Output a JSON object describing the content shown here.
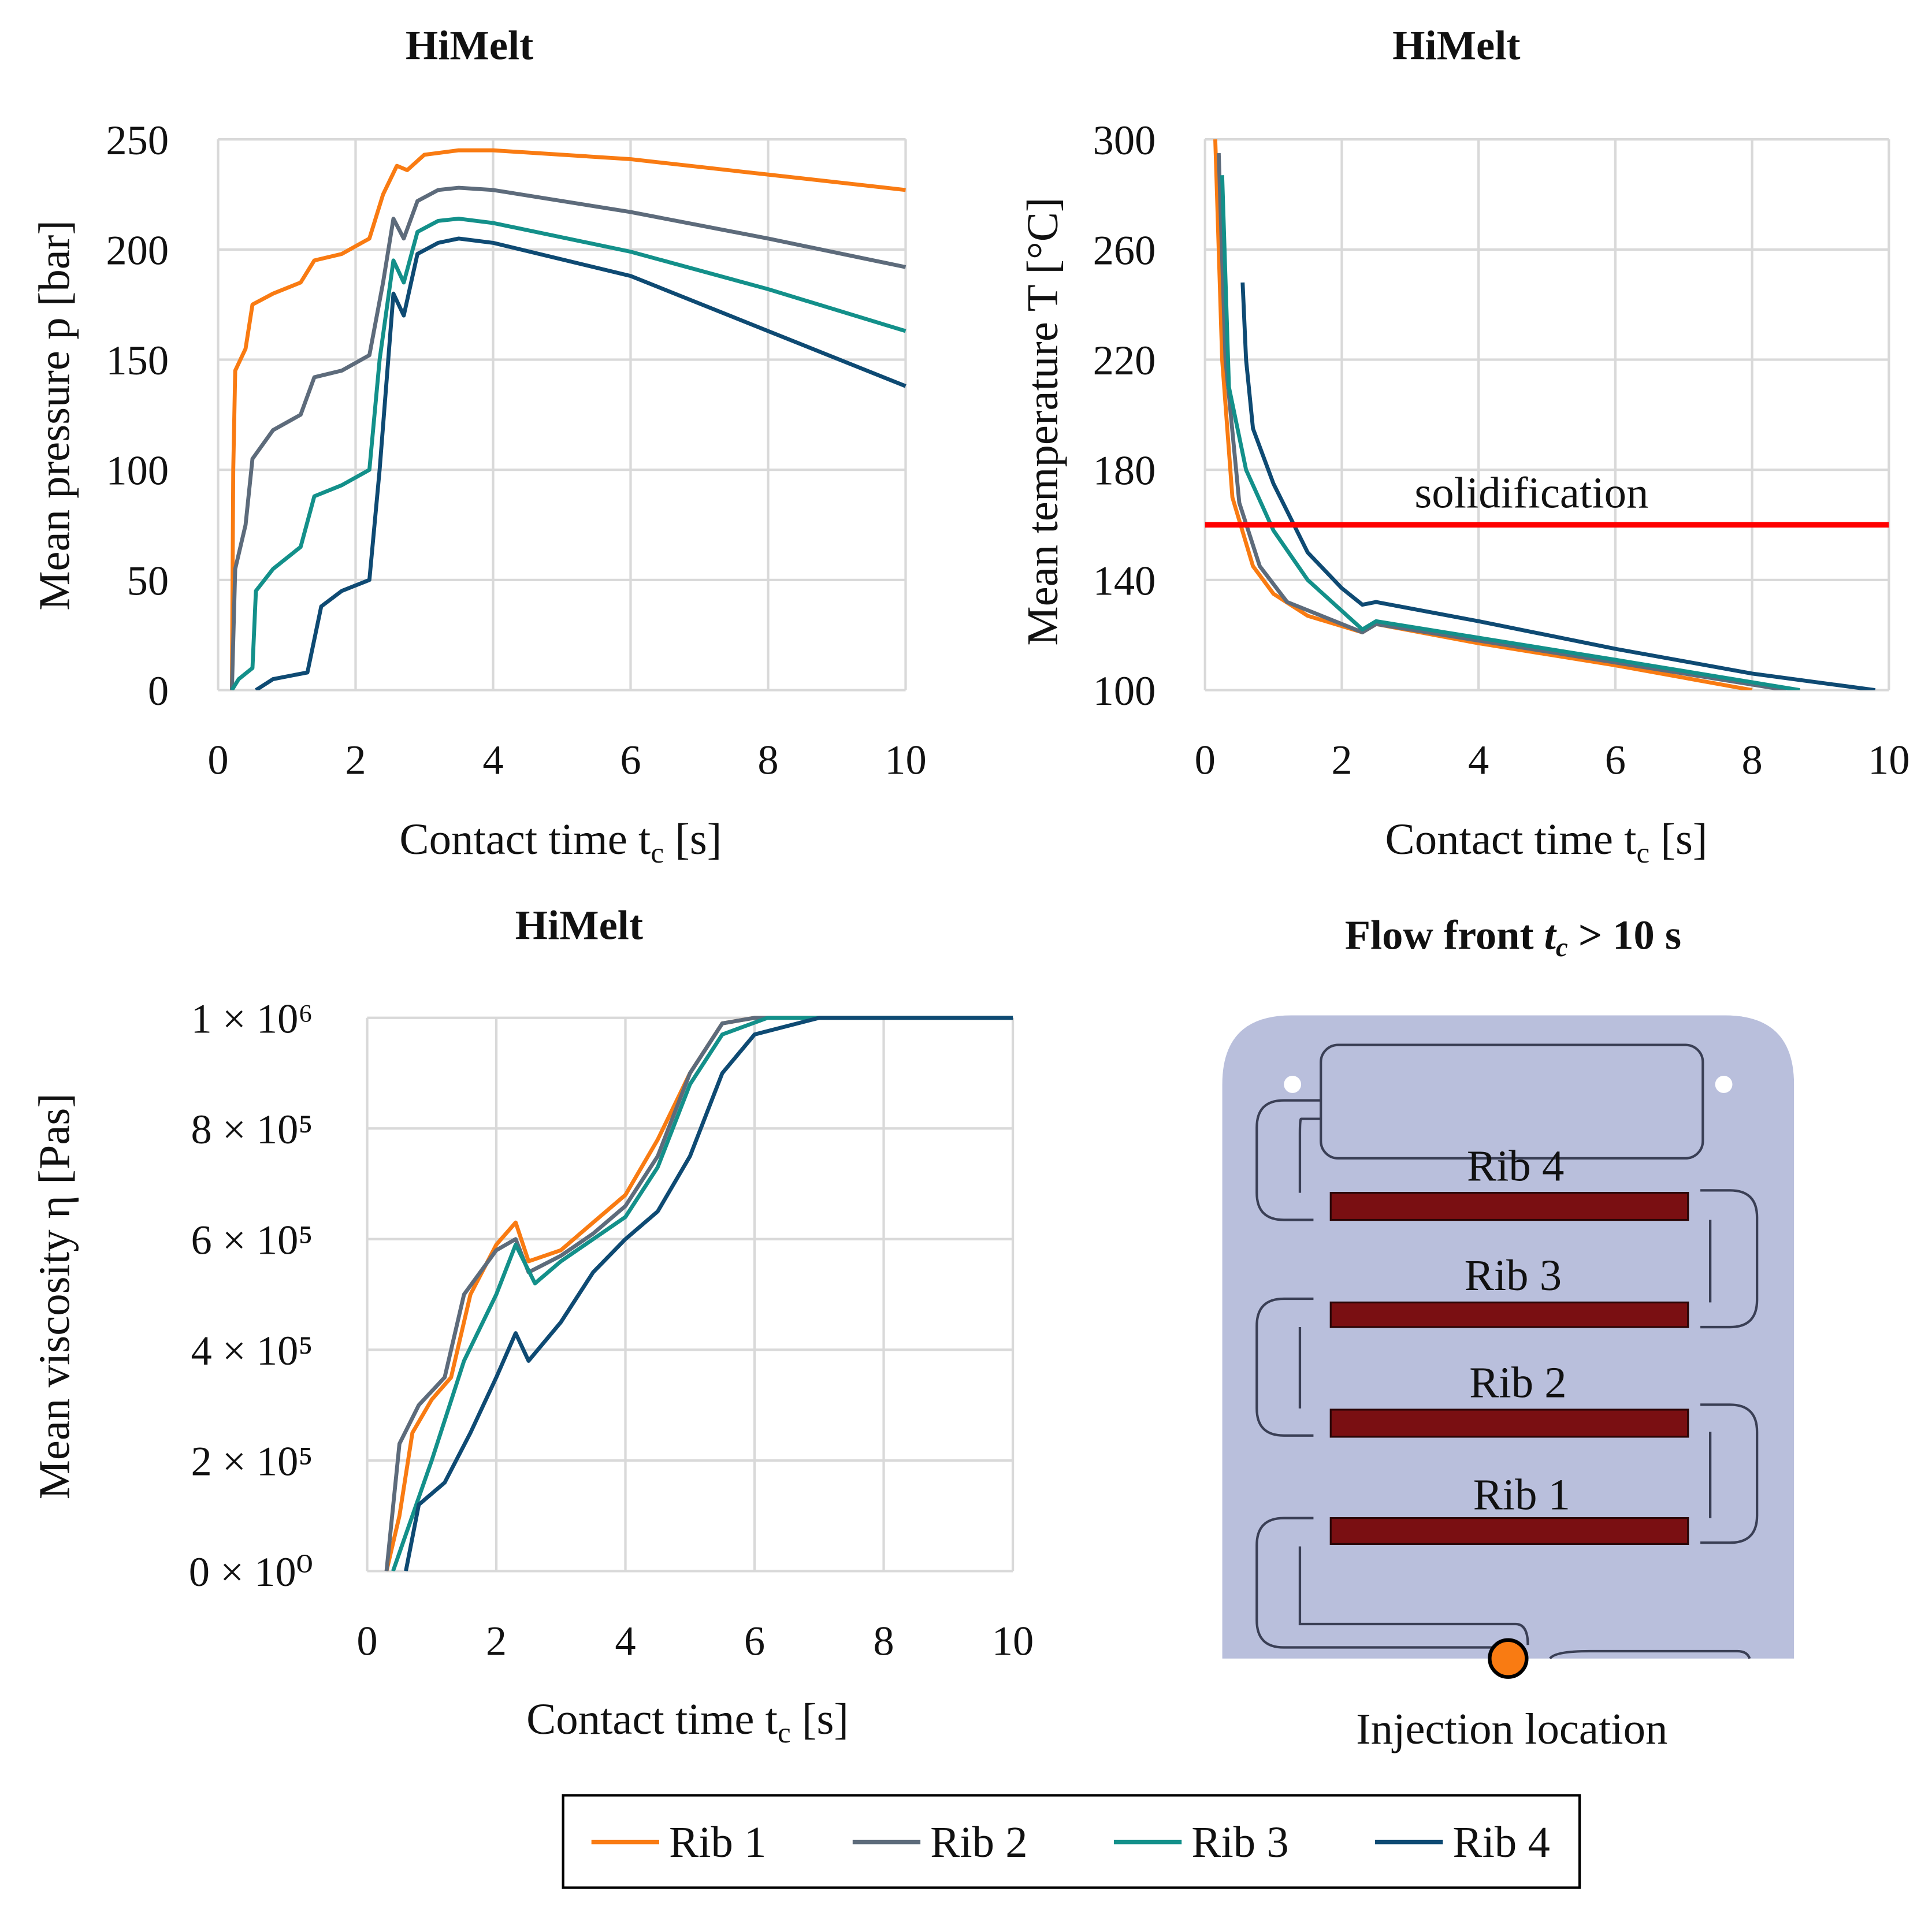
{
  "colors": {
    "Rib 1": "#f97b12",
    "Rib 2": "#5d6b7b",
    "Rib 3": "#13908a",
    "Rib 4": "#0e4a73",
    "solidification": "#ff0000",
    "part": "#b9bfdc",
    "rib_fill": "#7a0f12",
    "injection": "#f97b12"
  },
  "chart_data": [
    {
      "type": "line",
      "title": "HiMelt",
      "xlabel": {
        "main": "Contact time t",
        "sub": "c",
        "unit": " [s]"
      },
      "ylabel": "Mean pressure p [bar]",
      "xlim": [
        0,
        10
      ],
      "ylim": [
        0,
        250
      ],
      "xticks": [
        "0",
        "2",
        "4",
        "6",
        "8",
        "10"
      ],
      "yticks": [
        "0",
        "50",
        "100",
        "150",
        "200",
        "250"
      ],
      "grid": true,
      "series": [
        {
          "name": "Rib 1",
          "x": [
            0.2,
            0.22,
            0.25,
            0.4,
            0.5,
            0.8,
            1.2,
            1.4,
            1.8,
            2.2,
            2.4,
            2.6,
            2.75,
            3,
            3.5,
            4,
            6,
            8,
            10
          ],
          "y": [
            0,
            100,
            145,
            155,
            175,
            180,
            185,
            195,
            198,
            205,
            225,
            238,
            236,
            243,
            245,
            245,
            241,
            234,
            227
          ]
        },
        {
          "name": "Rib 2",
          "x": [
            0.2,
            0.25,
            0.4,
            0.5,
            0.8,
            1.2,
            1.4,
            1.8,
            2.2,
            2.4,
            2.55,
            2.7,
            2.9,
            3.2,
            3.5,
            4,
            6,
            8,
            10
          ],
          "y": [
            0,
            55,
            75,
            105,
            118,
            125,
            142,
            145,
            152,
            185,
            214,
            205,
            222,
            227,
            228,
            227,
            217,
            205,
            192
          ]
        },
        {
          "name": "Rib 3",
          "x": [
            0.2,
            0.3,
            0.5,
            0.55,
            0.8,
            1.2,
            1.4,
            1.8,
            2.2,
            2.35,
            2.55,
            2.7,
            2.9,
            3.2,
            3.5,
            4,
            6,
            8,
            10
          ],
          "y": [
            0,
            5,
            10,
            45,
            55,
            65,
            88,
            93,
            100,
            150,
            195,
            185,
            208,
            213,
            214,
            212,
            199,
            182,
            163
          ]
        },
        {
          "name": "Rib 4",
          "x": [
            0.55,
            0.8,
            1.3,
            1.5,
            1.8,
            2.2,
            2.35,
            2.55,
            2.7,
            2.9,
            3.2,
            3.5,
            4,
            6,
            8,
            10
          ],
          "y": [
            0,
            5,
            8,
            38,
            45,
            50,
            100,
            180,
            170,
            198,
            203,
            205,
            203,
            188,
            163,
            138
          ]
        }
      ]
    },
    {
      "type": "line",
      "title": "HiMelt",
      "xlabel": {
        "main": "Contact time t",
        "sub": "c",
        "unit": " [s]"
      },
      "ylabel": "Mean temperature T [°C]",
      "xlim": [
        0,
        10
      ],
      "ylim": [
        100,
        300
      ],
      "xticks": [
        "0",
        "2",
        "4",
        "6",
        "8",
        "10"
      ],
      "yticks": [
        "100",
        "140",
        "180",
        "220",
        "260",
        "300"
      ],
      "grid": true,
      "annotation": {
        "label": "solidification",
        "y": 160
      },
      "series": [
        {
          "name": "Rib 1",
          "x": [
            0.15,
            0.25,
            0.4,
            0.7,
            1,
            1.5,
            2.3,
            2.5,
            4,
            6,
            8
          ],
          "y": [
            300,
            220,
            170,
            145,
            135,
            127,
            121,
            124,
            117,
            109,
            100
          ]
        },
        {
          "name": "Rib 2",
          "x": [
            0.2,
            0.3,
            0.5,
            0.8,
            1.2,
            2.3,
            2.5,
            4,
            6,
            8.5
          ],
          "y": [
            295,
            220,
            168,
            145,
            132,
            121,
            124,
            118,
            110,
            100
          ]
        },
        {
          "name": "Rib 3",
          "x": [
            0.25,
            0.35,
            0.6,
            1,
            1.5,
            2.3,
            2.5,
            4,
            6,
            8.7
          ],
          "y": [
            287,
            210,
            180,
            158,
            140,
            122,
            125,
            119,
            111,
            100
          ]
        },
        {
          "name": "Rib 4",
          "x": [
            0.55,
            0.6,
            0.7,
            1,
            1.2,
            1.5,
            2,
            2.3,
            2.5,
            4,
            6,
            8,
            9.8
          ],
          "y": [
            248,
            220,
            195,
            175,
            165,
            150,
            137,
            131,
            132,
            125,
            115,
            106,
            100
          ]
        }
      ]
    },
    {
      "type": "line",
      "title": "HiMelt",
      "xlabel": {
        "main": "Contact time t",
        "sub": "c",
        "unit": " [s]"
      },
      "ylabel": "Mean viscosity η [Pas]",
      "xlim": [
        0,
        10
      ],
      "ylim": [
        0,
        1000000
      ],
      "xticks": [
        "0",
        "2",
        "4",
        "6",
        "8",
        "10"
      ],
      "yticks": [
        "0 × 10⁰",
        "2 × 10⁵",
        "4 × 10⁵",
        "6 × 10⁵",
        "8 × 10⁵",
        "1 × 10⁶"
      ],
      "grid": true,
      "series": [
        {
          "name": "Rib 1",
          "x": [
            0.3,
            0.5,
            0.7,
            1,
            1.3,
            1.6,
            2,
            2.3,
            2.5,
            3,
            3.5,
            4,
            4.5,
            5,
            5.5,
            6,
            10
          ],
          "y": [
            0,
            100000,
            250000,
            310000,
            350000,
            500000,
            590000,
            630000,
            560000,
            580000,
            630000,
            680000,
            780000,
            900000,
            990000,
            1000000,
            1000000
          ]
        },
        {
          "name": "Rib 2",
          "x": [
            0.3,
            0.5,
            0.8,
            1.2,
            1.5,
            2,
            2.3,
            2.5,
            3,
            3.5,
            4,
            4.5,
            5,
            5.5,
            6,
            10
          ],
          "y": [
            0,
            230000,
            300000,
            350000,
            500000,
            580000,
            600000,
            540000,
            570000,
            610000,
            660000,
            750000,
            900000,
            990000,
            1000000,
            1000000
          ]
        },
        {
          "name": "Rib 3",
          "x": [
            0.4,
            0.7,
            1,
            1.5,
            2,
            2.3,
            2.6,
            3,
            3.5,
            4,
            4.5,
            5,
            5.5,
            6.2,
            10
          ],
          "y": [
            0,
            100000,
            200000,
            380000,
            500000,
            590000,
            520000,
            560000,
            600000,
            640000,
            730000,
            880000,
            970000,
            1000000,
            1000000
          ]
        },
        {
          "name": "Rib 4",
          "x": [
            0.6,
            0.8,
            1.2,
            1.6,
            2,
            2.3,
            2.5,
            3,
            3.5,
            4,
            4.5,
            5,
            5.5,
            6,
            7,
            10
          ],
          "y": [
            0,
            120000,
            160000,
            250000,
            350000,
            430000,
            380000,
            450000,
            540000,
            600000,
            650000,
            750000,
            900000,
            970000,
            1000000,
            1000000
          ]
        }
      ]
    }
  ],
  "flow_front": {
    "title_main": "Flow front ",
    "title_t": "t",
    "title_sub": "c",
    "title_rest": " > 10 s",
    "rib_labels": [
      "Rib 4",
      "Rib 3",
      "Rib 2",
      "Rib 1"
    ],
    "injection_label": "Injection location"
  },
  "legend": [
    "Rib 1",
    "Rib 2",
    "Rib 3",
    "Rib 4"
  ]
}
